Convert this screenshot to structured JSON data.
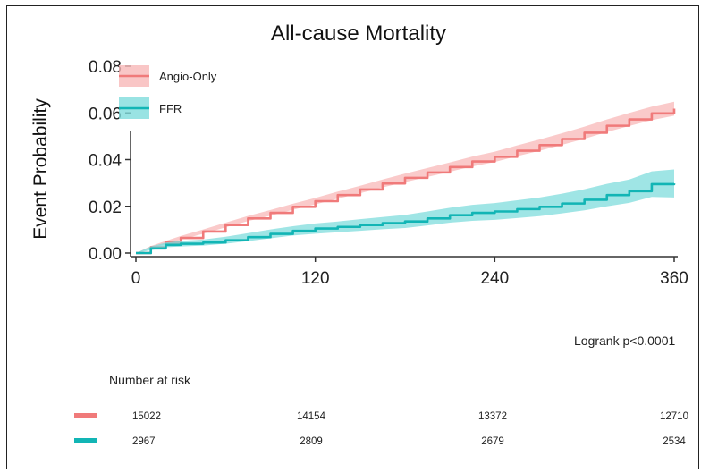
{
  "chart_data": {
    "type": "line",
    "title": "All-cause Mortality",
    "xlabel": "",
    "ylabel": "Event Probability",
    "xlim": [
      0,
      360
    ],
    "ylim": [
      0,
      0.08
    ],
    "x_ticks": [
      "0",
      "120",
      "240",
      "360"
    ],
    "y_ticks": [
      "0.00",
      "0.02",
      "0.04",
      "0.06",
      "0.08"
    ],
    "legend_position": "top-left",
    "grid": false,
    "series": [
      {
        "name": "Angio-Only",
        "color": "#f07a7a",
        "band_color": "#f8b8b8",
        "x": [
          0,
          10,
          20,
          30,
          45,
          60,
          75,
          90,
          105,
          120,
          135,
          150,
          165,
          180,
          195,
          210,
          225,
          240,
          255,
          270,
          285,
          300,
          315,
          330,
          345,
          360
        ],
        "y": [
          0.0,
          0.0025,
          0.0045,
          0.0065,
          0.0092,
          0.012,
          0.0148,
          0.0172,
          0.0198,
          0.0222,
          0.0248,
          0.0272,
          0.0298,
          0.0322,
          0.0345,
          0.0368,
          0.0392,
          0.0412,
          0.0438,
          0.0462,
          0.0488,
          0.0515,
          0.0545,
          0.0572,
          0.0598,
          0.0618
        ],
        "band_halfwidth": [
          0.0,
          0.0005,
          0.0007,
          0.0008,
          0.0009,
          0.001,
          0.0011,
          0.0012,
          0.0013,
          0.0014,
          0.0015,
          0.0016,
          0.0017,
          0.0018,
          0.0019,
          0.002,
          0.0021,
          0.0022,
          0.0023,
          0.0024,
          0.0025,
          0.0026,
          0.0027,
          0.0028,
          0.0029,
          0.003
        ]
      },
      {
        "name": "FFR",
        "color": "#12b5b5",
        "band_color": "#7fdcdc",
        "x": [
          0,
          10,
          20,
          30,
          45,
          60,
          75,
          90,
          105,
          120,
          135,
          150,
          165,
          180,
          195,
          210,
          225,
          240,
          255,
          270,
          285,
          300,
          315,
          330,
          345,
          360
        ],
        "y": [
          0.0,
          0.002,
          0.0035,
          0.004,
          0.0045,
          0.0055,
          0.0068,
          0.0082,
          0.0095,
          0.0105,
          0.0112,
          0.012,
          0.0128,
          0.0135,
          0.0148,
          0.0162,
          0.0172,
          0.0178,
          0.0188,
          0.0198,
          0.0212,
          0.0228,
          0.0248,
          0.0265,
          0.0295,
          0.0298
        ],
        "band_halfwidth": [
          0.0,
          0.0008,
          0.001,
          0.0012,
          0.0013,
          0.0015,
          0.0017,
          0.0019,
          0.002,
          0.0022,
          0.0023,
          0.0025,
          0.0026,
          0.0028,
          0.003,
          0.0032,
          0.0034,
          0.0036,
          0.0038,
          0.004,
          0.0042,
          0.0045,
          0.0048,
          0.005,
          0.0055,
          0.006
        ]
      }
    ],
    "annotation": "Logrank p<0.0001",
    "risk_table": {
      "title": "Number at risk",
      "rows": [
        {
          "series": "Angio-Only",
          "color": "#f07a7a",
          "values": [
            "15022",
            "14154",
            "13372",
            "12710"
          ]
        },
        {
          "series": "FFR",
          "color": "#12b5b5",
          "values": [
            "2967",
            "2809",
            "2679",
            "2534"
          ]
        }
      ]
    }
  }
}
